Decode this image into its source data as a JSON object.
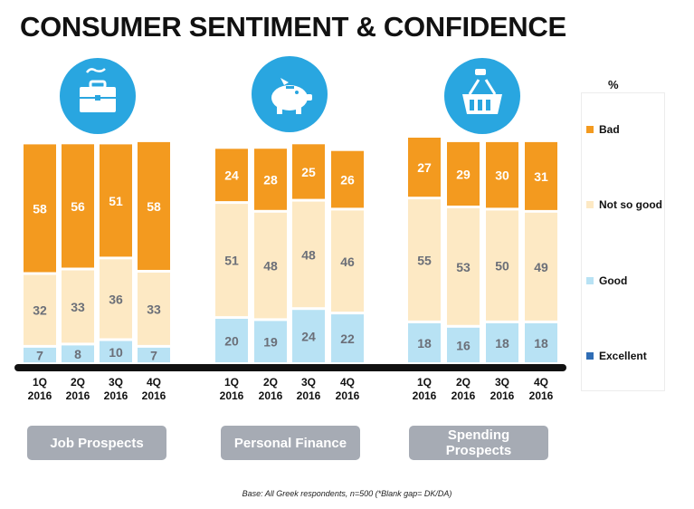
{
  "title": "CONSUMER SENTIMENT & CONFIDENCE",
  "footnote": "Base: All Greek respondents, n=500   (*Blank gap= DK/DA)",
  "colors": {
    "bad": "#f39a1f",
    "not_so_good": "#fde9c4",
    "good": "#b8e2f4",
    "excellent": "#2f6db5",
    "icon": "#29a6e0",
    "axis": "#111111",
    "button": "#a6abb4"
  },
  "legend": {
    "title": "%",
    "items": [
      {
        "label": "Bad",
        "color": "#f39a1f"
      },
      {
        "label": "Not so good",
        "color": "#fde9c4"
      },
      {
        "label": "Good",
        "color": "#b8e2f4"
      },
      {
        "label": "Excellent",
        "color": "#2f6db5"
      }
    ]
  },
  "groups": [
    {
      "label": "Job Prospects",
      "icon": "briefcase-icon"
    },
    {
      "label": "Personal Finance",
      "icon": "piggy-bank-icon"
    },
    {
      "label": "Spending Prospects",
      "icon": "shopping-basket-icon"
    }
  ],
  "chart_data": {
    "type": "bar",
    "stacked": true,
    "ylim": [
      0,
      100
    ],
    "unit": "%",
    "categories": [
      "1Q 2016",
      "2Q 2016",
      "3Q 2016",
      "4Q 2016"
    ],
    "series_order": [
      "Excellent",
      "Good",
      "Not so good",
      "Bad"
    ],
    "panels": [
      {
        "name": "Job Prospects",
        "series": [
          {
            "name": "Excellent",
            "values": [
              0,
              0,
              0,
              0
            ]
          },
          {
            "name": "Good",
            "values": [
              7,
              8,
              10,
              7
            ]
          },
          {
            "name": "Not so good",
            "values": [
              32,
              33,
              36,
              33
            ]
          },
          {
            "name": "Bad",
            "values": [
              58,
              56,
              51,
              58
            ]
          }
        ]
      },
      {
        "name": "Personal Finance",
        "series": [
          {
            "name": "Excellent",
            "values": [
              0,
              0,
              0,
              0
            ]
          },
          {
            "name": "Good",
            "values": [
              20,
              19,
              24,
              22
            ]
          },
          {
            "name": "Not so good",
            "values": [
              51,
              48,
              48,
              46
            ]
          },
          {
            "name": "Bad",
            "values": [
              24,
              28,
              25,
              26
            ]
          }
        ]
      },
      {
        "name": "Spending Prospects",
        "series": [
          {
            "name": "Excellent",
            "values": [
              0,
              0,
              0,
              0
            ]
          },
          {
            "name": "Good",
            "values": [
              18,
              16,
              18,
              18
            ]
          },
          {
            "name": "Not so good",
            "values": [
              55,
              53,
              50,
              49
            ]
          },
          {
            "name": "Bad",
            "values": [
              27,
              29,
              30,
              31
            ]
          }
        ]
      }
    ]
  }
}
